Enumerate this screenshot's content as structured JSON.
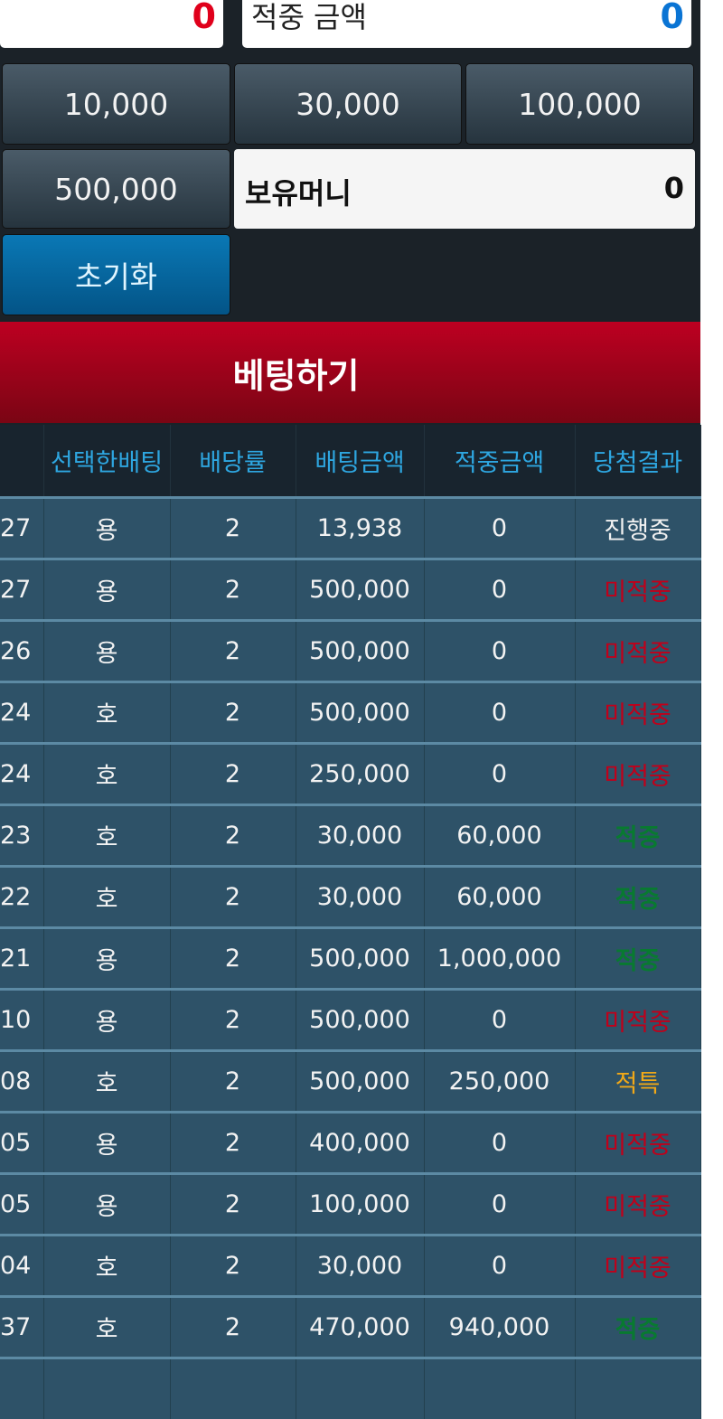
{
  "top": {
    "left_value": "0",
    "left_value_color": "#e0001b",
    "win_amount_label": "적중 금액",
    "win_amount_value": "0",
    "win_amount_color": "#0a74d4"
  },
  "chips": [
    "10,000",
    "30,000",
    "100,000",
    "500,000"
  ],
  "holding": {
    "label": "보유머니",
    "value": "0"
  },
  "reset_label": "초기화",
  "bet_label": "베팅하기",
  "table": {
    "headers": [
      "",
      "선택한배팅",
      "배당률",
      "배팅금액",
      "적중금액",
      "당첨결과"
    ],
    "rows": [
      [
        "27",
        "용",
        "2",
        "13,938",
        "0",
        "진행중",
        "wait"
      ],
      [
        "27",
        "용",
        "2",
        "500,000",
        "0",
        "미적중",
        "lose"
      ],
      [
        "26",
        "용",
        "2",
        "500,000",
        "0",
        "미적중",
        "lose"
      ],
      [
        "24",
        "호",
        "2",
        "500,000",
        "0",
        "미적중",
        "lose"
      ],
      [
        "24",
        "호",
        "2",
        "250,000",
        "0",
        "미적중",
        "lose"
      ],
      [
        "23",
        "호",
        "2",
        "30,000",
        "60,000",
        "적중",
        "win"
      ],
      [
        "22",
        "호",
        "2",
        "30,000",
        "60,000",
        "적중",
        "win"
      ],
      [
        "21",
        "용",
        "2",
        "500,000",
        "1,000,000",
        "적중",
        "win"
      ],
      [
        "10",
        "용",
        "2",
        "500,000",
        "0",
        "미적중",
        "lose"
      ],
      [
        "08",
        "호",
        "2",
        "500,000",
        "250,000",
        "적특",
        "spec"
      ],
      [
        "05",
        "용",
        "2",
        "400,000",
        "0",
        "미적중",
        "lose"
      ],
      [
        "05",
        "용",
        "2",
        "100,000",
        "0",
        "미적중",
        "lose"
      ],
      [
        "04",
        "호",
        "2",
        "30,000",
        "0",
        "미적중",
        "lose"
      ],
      [
        "37",
        "호",
        "2",
        "470,000",
        "940,000",
        "적중",
        "win"
      ],
      [
        "",
        "",
        "",
        "",
        "",
        "",
        ""
      ]
    ]
  }
}
